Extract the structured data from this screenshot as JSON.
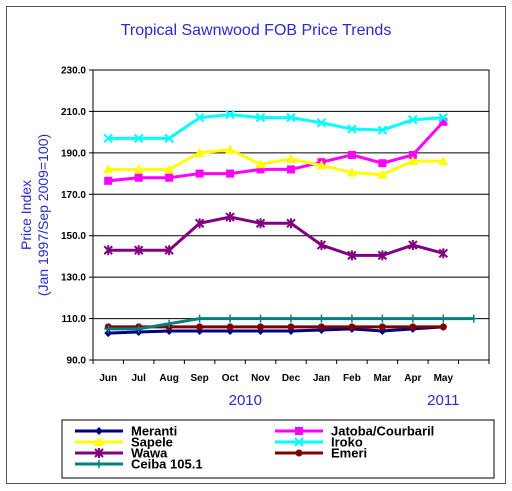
{
  "chart_data": {
    "type": "line",
    "title": "Tropical Sawnwood FOB Price Trends",
    "ylabel": "Price Index\n(Jan 1997/Sep 2009=100)",
    "categories": [
      "Jun",
      "Jul",
      "Aug",
      "Sep",
      "Oct",
      "Nov",
      "Dec",
      "Jan",
      "Feb",
      "Mar",
      "Apr",
      "May",
      ""
    ],
    "year_labels": [
      {
        "text": "2010",
        "category_index": 4.5
      },
      {
        "text": "2011",
        "category_index": 11
      }
    ],
    "ylim": [
      90,
      230
    ],
    "yticks": [
      "90.0",
      "110.0",
      "130.0",
      "150.0",
      "170.0",
      "190.0",
      "210.0",
      "230.0"
    ],
    "grid": true,
    "legend_position": "bottom",
    "series": [
      {
        "name": "Meranti",
        "color": "#000080",
        "marker": "diamond",
        "values": [
          103,
          103.5,
          104,
          104,
          104,
          104,
          104,
          104.5,
          105,
          104,
          105,
          106,
          null
        ]
      },
      {
        "name": "Jatoba/Courbaril",
        "color": "#ff00ff",
        "marker": "square",
        "values": [
          176.5,
          178,
          178,
          180,
          180,
          182,
          182,
          185.5,
          189,
          185,
          189,
          205,
          null
        ]
      },
      {
        "name": "Sapele",
        "color": "#ffff00",
        "marker": "triangle",
        "values": [
          182,
          182,
          182,
          190,
          191.5,
          184.5,
          187,
          184,
          180.5,
          179.5,
          186,
          186,
          null
        ]
      },
      {
        "name": "Iroko",
        "color": "#00ffff",
        "marker": "x",
        "values": [
          197,
          197,
          197,
          207,
          208.5,
          207,
          207,
          204.5,
          201.5,
          201,
          206,
          207,
          null
        ]
      },
      {
        "name": "Wawa",
        "color": "#800080",
        "marker": "star",
        "values": [
          143,
          143,
          143,
          156,
          159,
          156,
          156,
          145.5,
          140.5,
          140.5,
          145.5,
          141.5,
          null
        ]
      },
      {
        "name": "Emeri",
        "color": "#800000",
        "marker": "circle",
        "values": [
          106,
          106,
          106,
          106,
          106,
          106,
          106,
          106,
          106,
          106,
          106,
          106,
          null
        ]
      },
      {
        "name": "Ceiba  105.1",
        "color": "#008080",
        "marker": "plus",
        "values": [
          105,
          105,
          107.5,
          110,
          110,
          110,
          110,
          110,
          110,
          110,
          110,
          110,
          110
        ]
      }
    ]
  }
}
